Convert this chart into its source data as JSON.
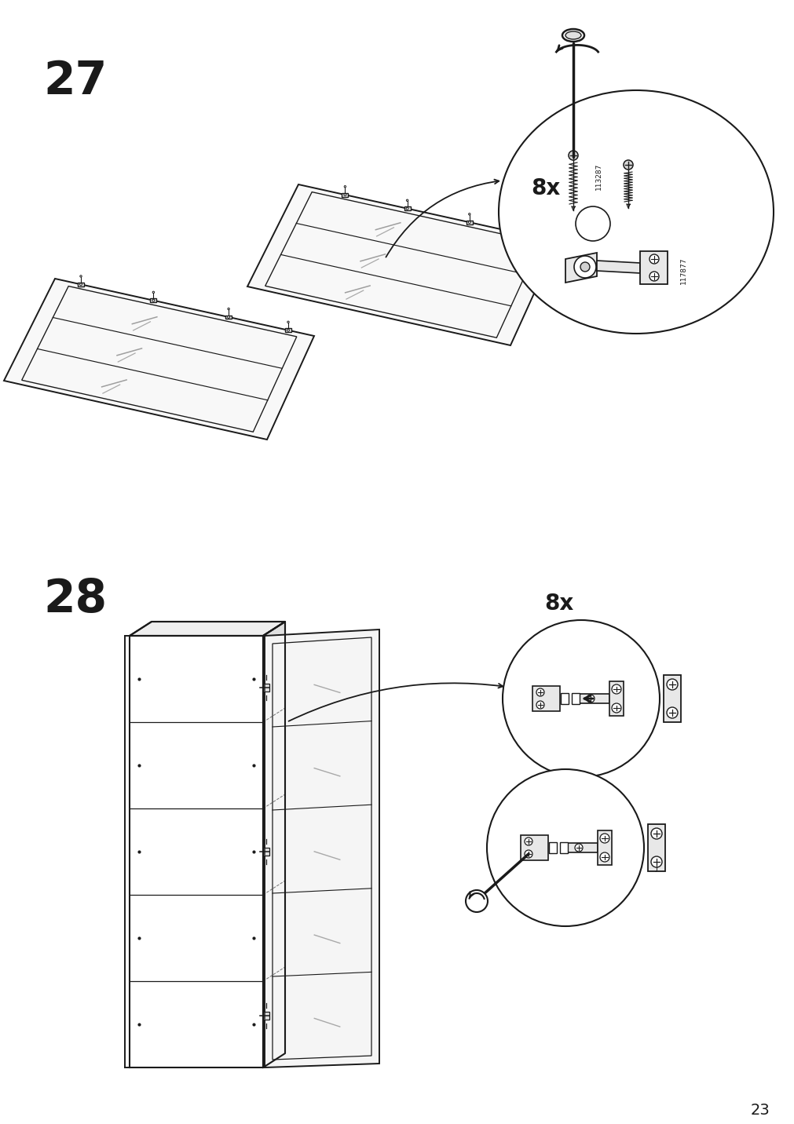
{
  "page_number": "23",
  "step27_label": "27",
  "step28_label": "28",
  "quantity_label_27": "8x",
  "quantity_label_28": "8x",
  "part_number_1": "113287",
  "part_number_2": "117877",
  "bg_color": "#ffffff",
  "line_color": "#1a1a1a",
  "gray1": "#cccccc",
  "gray2": "#888888",
  "gray3": "#444444",
  "gray_fill": "#e8e8e8",
  "gray_fill2": "#d0d0d0"
}
